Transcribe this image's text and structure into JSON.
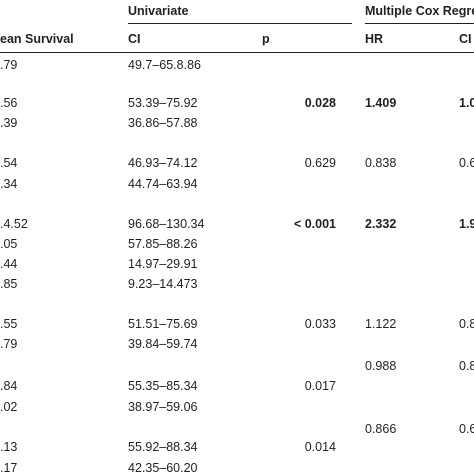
{
  "header": {
    "group_univariate": "Univariate",
    "group_cox": "Multiple Cox Regres",
    "col_mean_survival": "ean Survival",
    "col_ci": "CI",
    "col_p": "p",
    "col_hr": "HR",
    "col_ci2": "CI"
  },
  "rows": [
    {
      "mean": ".79",
      "ci": "49.7–65.8.86",
      "p": "",
      "hr": "",
      "ci2": "",
      "bold": false
    },
    {
      "mean": ".56",
      "ci": "53.39–75.92",
      "p": "0.028",
      "hr": "1.409",
      "ci2": "1.0",
      "bold": true
    },
    {
      "mean": ".39",
      "ci": "36.86–57.88",
      "p": "",
      "hr": "",
      "ci2": "",
      "bold": false
    },
    {
      "mean": ".54",
      "ci": "46.93–74.12",
      "p": "0.629",
      "hr": "0.838",
      "ci2": "0.6",
      "bold": false
    },
    {
      "mean": ".34",
      "ci": "44.74–63.94",
      "p": "",
      "hr": "",
      "ci2": "",
      "bold": false
    },
    {
      "mean": ".4.52",
      "ci": "96.68–130.34",
      "p": "< 0.001",
      "hr": "2.332",
      "ci2": "1.9",
      "bold": true
    },
    {
      "mean": ".05",
      "ci": "57.85–88.26",
      "p": "",
      "hr": "",
      "ci2": "",
      "bold": false
    },
    {
      "mean": ".44",
      "ci": "14.97–29.91",
      "p": "",
      "hr": "",
      "ci2": "",
      "bold": false
    },
    {
      "mean": ".85",
      "ci": "9.23–14.473",
      "p": "",
      "hr": "",
      "ci2": "",
      "bold": false
    },
    {
      "mean": ".55",
      "ci": "51.51–75.69",
      "p": "0.033",
      "hr": "1.122",
      "ci2": "0.8",
      "bold": false
    },
    {
      "mean": ".79",
      "ci": "39.84–59.74",
      "p": "",
      "hr": "",
      "ci2": "",
      "bold": false
    },
    {
      "mean": "",
      "ci": "",
      "p": "",
      "hr": "0.988",
      "ci2": "0.8",
      "bold": false
    },
    {
      "mean": ".84",
      "ci": "55.35–85.34",
      "p": "0.017",
      "hr": "",
      "ci2": "",
      "bold": false
    },
    {
      "mean": ".02",
      "ci": "38.97–59.06",
      "p": "",
      "hr": "",
      "ci2": "",
      "bold": false
    },
    {
      "mean": "",
      "ci": "",
      "p": "",
      "hr": "0.866",
      "ci2": "0.6",
      "bold": false
    },
    {
      "mean": ".13",
      "ci": "55.92–88.34",
      "p": "0.014",
      "hr": "",
      "ci2": "",
      "bold": false
    },
    {
      "mean": ".17",
      "ci": "42.35–60.20",
      "p": "",
      "hr": "",
      "ci2": "",
      "bold": false
    }
  ]
}
